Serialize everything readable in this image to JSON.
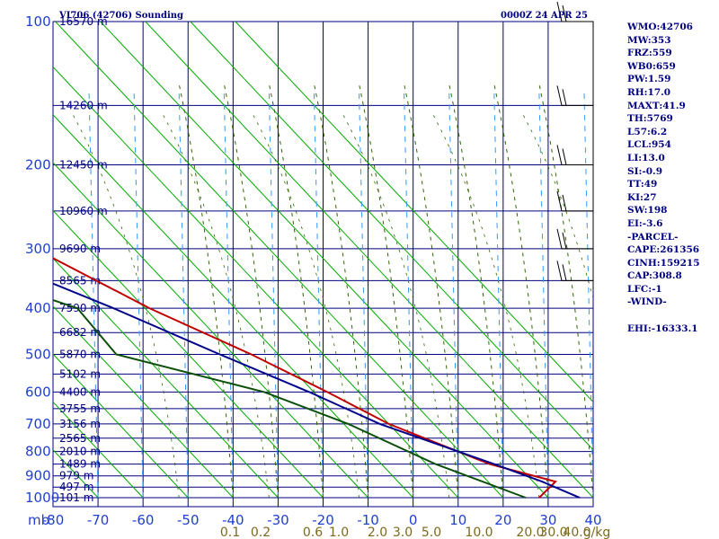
{
  "title_left": "VI706 (42706) Sounding",
  "title_right": "0000Z 24 APR 25",
  "chart_data": {
    "type": "line",
    "title": "VI706 (42706) Sounding",
    "pressure_axis": {
      "ticks": [
        100,
        200,
        300,
        400,
        500,
        600,
        700,
        800,
        900,
        1000
      ],
      "unit": "mb",
      "scale": "log"
    },
    "temperature_axis": {
      "ticks": [
        -80,
        -70,
        -60,
        -50,
        -40,
        -30,
        -20,
        -10,
        0,
        10,
        20,
        30,
        40
      ],
      "unit": "C",
      "range": [
        -80,
        40
      ]
    },
    "height_labels": [
      {
        "p": 100,
        "label": "16570 m"
      },
      {
        "p": 150,
        "label": "14260 m"
      },
      {
        "p": 200,
        "label": "12450 m"
      },
      {
        "p": 250,
        "label": "10960 m"
      },
      {
        "p": 300,
        "label": "9690 m"
      },
      {
        "p": 350,
        "label": "8565 m"
      },
      {
        "p": 400,
        "label": "7590 m"
      },
      {
        "p": 450,
        "label": "6682 m"
      },
      {
        "p": 500,
        "label": "5870 m"
      },
      {
        "p": 550,
        "label": "5102 m"
      },
      {
        "p": 600,
        "label": "4400 m"
      },
      {
        "p": 650,
        "label": "3755 m"
      },
      {
        "p": 700,
        "label": "3156 m"
      },
      {
        "p": 750,
        "label": "2565 m"
      },
      {
        "p": 800,
        "label": "2010 m"
      },
      {
        "p": 850,
        "label": "1489 m"
      },
      {
        "p": 900,
        "label": "979 m"
      },
      {
        "p": 950,
        "label": "497 m"
      },
      {
        "p": 1000,
        "label": "101 m"
      }
    ],
    "mixing_ratio_labels": [
      "0.1",
      "0.2",
      "0.6",
      "1.0",
      "2.0",
      "3.0",
      "5.0",
      "10.0",
      "20.0",
      "30.0",
      "40.0",
      "g/kg"
    ],
    "series": [
      {
        "name": "",
        "color": "#c00000",
        "points": [
          {
            "p": 1000,
            "t": 28
          },
          {
            "p": 925,
            "t": 35
          },
          {
            "p": 850,
            "t": 24
          },
          {
            "p": 700,
            "t": 10
          },
          {
            "p": 600,
            "t": 3
          },
          {
            "p": 500,
            "t": -6
          },
          {
            "p": 400,
            "t": -19
          },
          {
            "p": 300,
            "t": -32
          },
          {
            "p": 250,
            "t": -40
          },
          {
            "p": 200,
            "t": -52
          },
          {
            "p": 150,
            "t": -64
          },
          {
            "p": 100,
            "t": -76
          }
        ]
      },
      {
        "name": "",
        "color": "#00008b",
        "points": [
          {
            "p": 1000,
            "t": 37
          },
          {
            "p": 925,
            "t": 32
          },
          {
            "p": 850,
            "t": 25
          },
          {
            "p": 700,
            "t": 8
          },
          {
            "p": 600,
            "t": -1
          },
          {
            "p": 500,
            "t": -13
          },
          {
            "p": 400,
            "t": -27
          },
          {
            "p": 300,
            "t": -47
          },
          {
            "p": 250,
            "t": -59
          },
          {
            "p": 200,
            "t": -76
          },
          {
            "p": 185,
            "t": -80
          }
        ]
      },
      {
        "name": "",
        "color": "#0b4f0b",
        "points": [
          {
            "p": 1000,
            "t": 25
          },
          {
            "p": 850,
            "t": 12
          },
          {
            "p": 700,
            "t": 1
          },
          {
            "p": 600,
            "t": -11
          },
          {
            "p": 500,
            "t": -36
          },
          {
            "p": 400,
            "t": -35
          },
          {
            "p": 300,
            "t": -62
          },
          {
            "p": 250,
            "t": -80
          }
        ]
      }
    ],
    "grid": true
  },
  "wind_profile": [
    {
      "p": 100,
      "barb": true
    },
    {
      "p": 150,
      "barb": true
    },
    {
      "p": 200,
      "barb": true
    },
    {
      "p": 250,
      "barb": true
    },
    {
      "p": 300,
      "barb": true
    },
    {
      "p": 350,
      "barb": true
    }
  ],
  "stats": [
    "WMO:42706",
    "MW:353",
    "FRZ:559",
    "WB0:659",
    "PW:1.59",
    "RH:17.0",
    "MAXT:41.9",
    "TH:5769",
    "L57:6.2",
    "LCL:954",
    "LI:13.0",
    "SI:-0.9",
    "TT:49",
    "KI:27",
    "SW:198",
    "EI:-3.6",
    "-PARCEL-",
    "CAPE:261356",
    "CINH:159215",
    "CAP:308.8",
    "LFC:-1",
    "-WIND-",
    "",
    "EHI:-16333.1"
  ],
  "colors": {
    "grid": "#000080",
    "dry_adiabat": "#00aa00",
    "moist_adiabat": "#336600",
    "mixing_ratio": "#3399ff",
    "stats": "#000080"
  }
}
